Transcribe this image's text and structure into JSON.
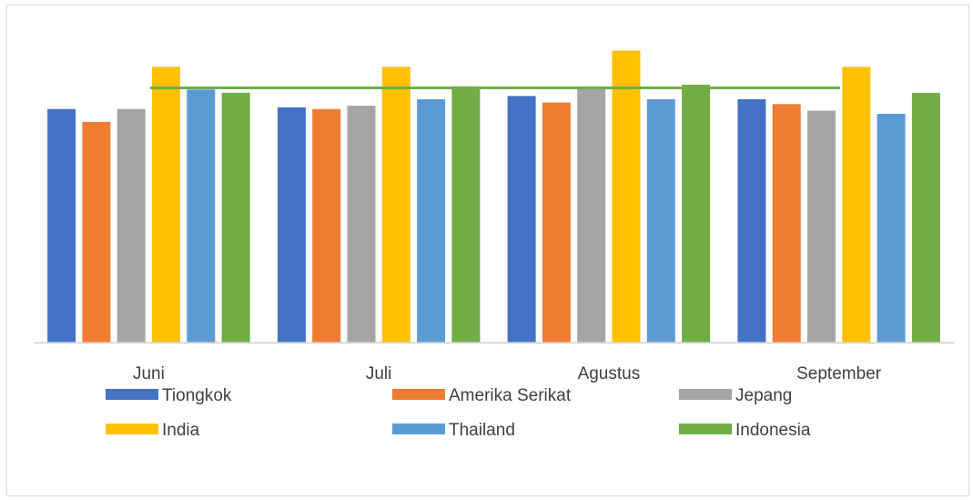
{
  "chart_data": {
    "type": "bar",
    "title": "",
    "xlabel": "",
    "ylabel": "",
    "categories": [
      "Juni",
      "Juli",
      "Agustus",
      "September"
    ],
    "ylim": [
      0,
      100
    ],
    "grid": false,
    "legend_position": "bottom",
    "series": [
      {
        "name": "Tiongkok",
        "color": "#4472C4",
        "values": [
          72,
          72.5,
          76,
          75
        ]
      },
      {
        "name": "Amerika Serikat",
        "color": "#ED7D31",
        "values": [
          68,
          72,
          74,
          73.5
        ]
      },
      {
        "name": "Jepang",
        "color": "#A5A5A5",
        "values": [
          72,
          73,
          79,
          71.5
        ]
      },
      {
        "name": "India",
        "color": "#FFC000",
        "values": [
          85,
          85,
          90,
          85
        ]
      },
      {
        "name": "Thailand",
        "color": "#5B9BD5",
        "values": [
          78,
          75,
          75,
          70.5
        ]
      },
      {
        "name": "Indonesia",
        "color": "#70AD47",
        "values": [
          77,
          79,
          79.5,
          77
        ]
      }
    ],
    "reference_line": {
      "color": "#70AD47",
      "value": 78.5
    }
  }
}
